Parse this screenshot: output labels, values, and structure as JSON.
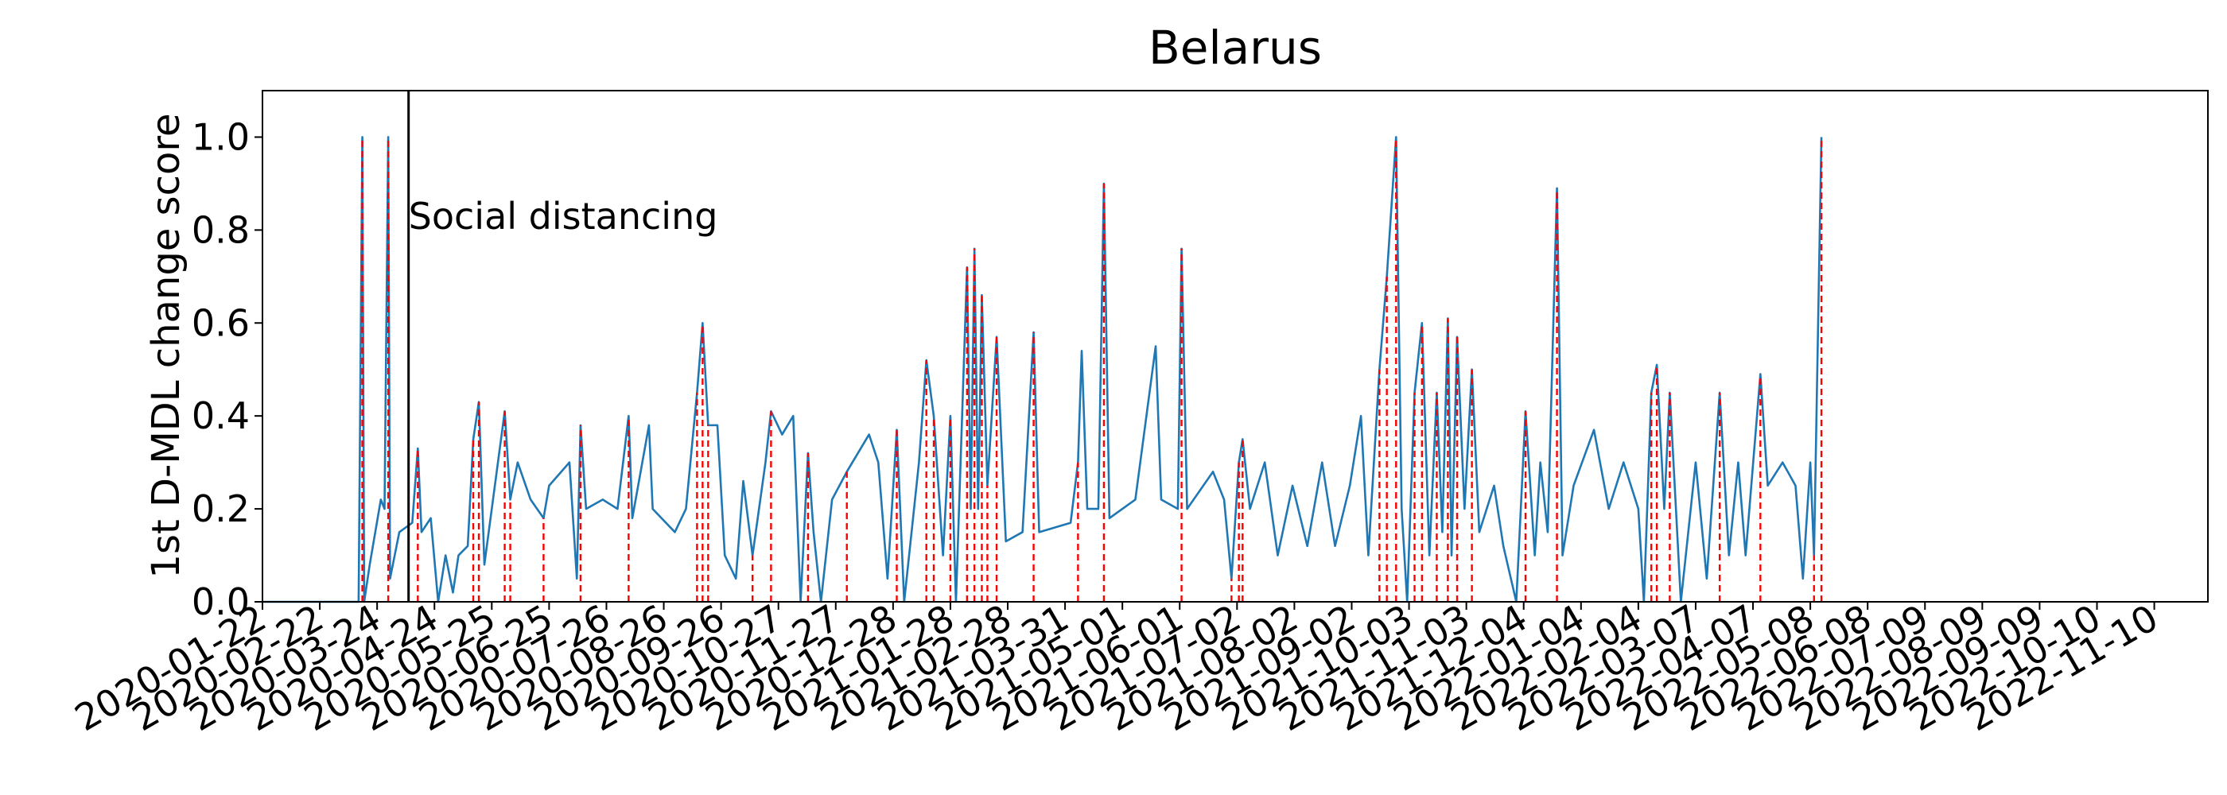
{
  "chart_data": {
    "type": "line",
    "title": "Belarus",
    "ylabel": "1st D-MDL change score",
    "xlim": [
      "2020-01-22",
      "2022-12-09"
    ],
    "xticks": [
      "2020-01-22",
      "2020-02-22",
      "2020-03-24",
      "2020-04-24",
      "2020-05-25",
      "2020-06-25",
      "2020-07-26",
      "2020-08-26",
      "2020-09-26",
      "2020-10-27",
      "2020-11-27",
      "2020-12-28",
      "2021-01-28",
      "2021-02-28",
      "2021-03-31",
      "2021-05-01",
      "2021-06-01",
      "2021-07-02",
      "2021-08-02",
      "2021-09-02",
      "2021-10-03",
      "2021-11-03",
      "2021-12-04",
      "2022-01-04",
      "2022-02-04",
      "2022-03-07",
      "2022-04-07",
      "2022-05-08",
      "2022-06-08",
      "2022-07-09",
      "2022-08-09",
      "2022-09-09",
      "2022-10-10",
      "2022-11-10"
    ],
    "ylim": [
      0,
      1.1
    ],
    "yticks": [
      {
        "value": 0,
        "label": "0.0"
      },
      0.2,
      0.4,
      0.6,
      0.8,
      {
        "value": 1,
        "label": "1.0"
      }
    ],
    "series": [
      {
        "color": "#1f77b4",
        "x": [
          "2020-01-22",
          "2020-03-14",
          "2020-03-16",
          "2020-03-17",
          "2020-03-20",
          "2020-03-26",
          "2020-03-28",
          "2020-03-30",
          "2020-03-31",
          "2020-04-05",
          "2020-04-12",
          "2020-04-15",
          "2020-04-17",
          "2020-04-22",
          "2020-04-26",
          "2020-04-30",
          "2020-05-04",
          "2020-05-07",
          "2020-05-12",
          "2020-05-15",
          "2020-05-18",
          "2020-05-21",
          "2020-05-25",
          "2020-06-01",
          "2020-06-04",
          "2020-06-08",
          "2020-06-15",
          "2020-06-22",
          "2020-06-25",
          "2020-07-06",
          "2020-07-10",
          "2020-07-12",
          "2020-07-15",
          "2020-07-24",
          "2020-08-01",
          "2020-08-07",
          "2020-08-09",
          "2020-08-18",
          "2020-08-20",
          "2020-09-01",
          "2020-09-07",
          "2020-09-13",
          "2020-09-16",
          "2020-09-19",
          "2020-09-24",
          "2020-09-28",
          "2020-10-04",
          "2020-10-08",
          "2020-10-13",
          "2020-10-20",
          "2020-10-23",
          "2020-10-29",
          "2020-11-04",
          "2020-11-08",
          "2020-11-12",
          "2020-11-15",
          "2020-11-19",
          "2020-11-25",
          "2020-12-03",
          "2020-12-15",
          "2020-12-20",
          "2020-12-25",
          "2020-12-30",
          "2021-01-03",
          "2021-01-11",
          "2021-01-15",
          "2021-01-19",
          "2021-01-24",
          "2021-01-28",
          "2021-01-31",
          "2021-02-06",
          "2021-02-08",
          "2021-02-10",
          "2021-02-12",
          "2021-02-14",
          "2021-02-17",
          "2021-02-22",
          "2021-02-27",
          "2021-03-08",
          "2021-03-14",
          "2021-03-17",
          "2021-04-03",
          "2021-04-07",
          "2021-04-09",
          "2021-04-12",
          "2021-04-18",
          "2021-04-21",
          "2021-04-24",
          "2021-05-08",
          "2021-05-19",
          "2021-05-22",
          "2021-05-31",
          "2021-06-02",
          "2021-06-05",
          "2021-06-19",
          "2021-06-25",
          "2021-06-29",
          "2021-07-03",
          "2021-07-05",
          "2021-07-09",
          "2021-07-17",
          "2021-07-24",
          "2021-08-01",
          "2021-08-09",
          "2021-08-17",
          "2021-08-24",
          "2021-09-01",
          "2021-09-07",
          "2021-09-11",
          "2021-09-17",
          "2021-09-21",
          "2021-09-26",
          "2021-09-29",
          "2021-10-02",
          "2021-10-06",
          "2021-10-10",
          "2021-10-14",
          "2021-10-18",
          "2021-10-21",
          "2021-10-24",
          "2021-10-26",
          "2021-10-29",
          "2021-11-02",
          "2021-11-06",
          "2021-11-10",
          "2021-11-18",
          "2021-11-23",
          "2021-11-30",
          "2021-12-05",
          "2021-12-10",
          "2021-12-13",
          "2021-12-17",
          "2021-12-22",
          "2021-12-25",
          "2021-12-31",
          "2022-01-11",
          "2022-01-19",
          "2022-01-27",
          "2022-02-04",
          "2022-02-07",
          "2022-02-11",
          "2022-02-14",
          "2022-02-18",
          "2022-02-21",
          "2022-02-27",
          "2022-03-07",
          "2022-03-13",
          "2022-03-20",
          "2022-03-25",
          "2022-03-30",
          "2022-04-03",
          "2022-04-11",
          "2022-04-15",
          "2022-04-23",
          "2022-04-30",
          "2022-05-04",
          "2022-05-08",
          "2022-05-10",
          "2022-05-14"
        ],
        "values": [
          0,
          0,
          1.0,
          0,
          0.08,
          0.22,
          0.2,
          1.0,
          0.05,
          0.15,
          0.17,
          0.33,
          0.15,
          0.18,
          0,
          0.1,
          0.02,
          0.1,
          0.12,
          0.35,
          0.43,
          0.08,
          0.2,
          0.41,
          0.22,
          0.3,
          0.22,
          0.18,
          0.25,
          0.3,
          0.05,
          0.38,
          0.2,
          0.22,
          0.2,
          0.4,
          0.18,
          0.38,
          0.2,
          0.15,
          0.2,
          0.45,
          0.6,
          0.38,
          0.38,
          0.1,
          0.05,
          0.26,
          0.1,
          0.3,
          0.41,
          0.36,
          0.4,
          0,
          0.32,
          0.15,
          0,
          0.22,
          0.28,
          0.36,
          0.3,
          0.05,
          0.37,
          0,
          0.3,
          0.52,
          0.4,
          0.1,
          0.4,
          0,
          0.72,
          0.2,
          0.76,
          0.2,
          0.66,
          0.25,
          0.57,
          0.13,
          0.15,
          0.58,
          0.15,
          0.17,
          0.3,
          0.54,
          0.2,
          0.2,
          0.9,
          0.18,
          0.22,
          0.55,
          0.22,
          0.2,
          0.76,
          0.2,
          0.28,
          0.22,
          0.05,
          0.3,
          0.35,
          0.2,
          0.3,
          0.1,
          0.25,
          0.12,
          0.3,
          0.12,
          0.25,
          0.4,
          0.1,
          0.5,
          0.7,
          1.0,
          0.2,
          0,
          0.45,
          0.6,
          0.1,
          0.45,
          0.15,
          0.61,
          0.1,
          0.57,
          0.2,
          0.5,
          0.15,
          0.25,
          0.12,
          0,
          0.41,
          0.1,
          0.3,
          0.15,
          0.89,
          0.1,
          0.25,
          0.37,
          0.2,
          0.3,
          0.2,
          0,
          0.45,
          0.51,
          0.2,
          0.45,
          0,
          0.3,
          0.05,
          0.45,
          0.1,
          0.3,
          0.1,
          0.49,
          0.25,
          0.3,
          0.25,
          0.05,
          0.3,
          0.1,
          1.0
        ]
      }
    ],
    "change_points": {
      "color": "#ff0000",
      "x": [
        "2020-03-16",
        "2020-03-30",
        "2020-04-15",
        "2020-05-15",
        "2020-05-18",
        "2020-06-01",
        "2020-06-04",
        "2020-06-22",
        "2020-07-12",
        "2020-08-07",
        "2020-09-13",
        "2020-09-16",
        "2020-09-19",
        "2020-10-13",
        "2020-10-23",
        "2020-11-12",
        "2020-12-03",
        "2020-12-30",
        "2021-01-15",
        "2021-01-19",
        "2021-01-28",
        "2021-02-06",
        "2021-02-10",
        "2021-02-14",
        "2021-02-17",
        "2021-02-22",
        "2021-03-14",
        "2021-04-07",
        "2021-04-21",
        "2021-06-02",
        "2021-06-29",
        "2021-07-03",
        "2021-07-05",
        "2021-09-17",
        "2021-09-21",
        "2021-09-26",
        "2021-10-06",
        "2021-10-10",
        "2021-10-18",
        "2021-10-24",
        "2021-10-29",
        "2021-11-06",
        "2021-12-05",
        "2021-12-22",
        "2022-02-11",
        "2022-02-14",
        "2022-02-21",
        "2022-03-20",
        "2022-04-11",
        "2022-05-10",
        "2022-05-14"
      ],
      "values": [
        1.0,
        1.0,
        0.33,
        0.35,
        0.43,
        0.41,
        0.22,
        0.18,
        0.38,
        0.4,
        0.45,
        0.6,
        0.38,
        0.1,
        0.41,
        0.32,
        0.28,
        0.37,
        0.52,
        0.4,
        0.4,
        0.72,
        0.76,
        0.66,
        0.25,
        0.57,
        0.58,
        0.3,
        0.9,
        0.76,
        0.05,
        0.3,
        0.35,
        0.5,
        0.7,
        1.0,
        0.45,
        0.6,
        0.45,
        0.61,
        0.57,
        0.5,
        0.41,
        0.89,
        0.45,
        0.51,
        0.45,
        0.45,
        0.49,
        0.1,
        1.0
      ]
    },
    "annotations": [
      {
        "x": "2020-04-10",
        "text": "Social distancing",
        "color": "#000000"
      }
    ]
  }
}
